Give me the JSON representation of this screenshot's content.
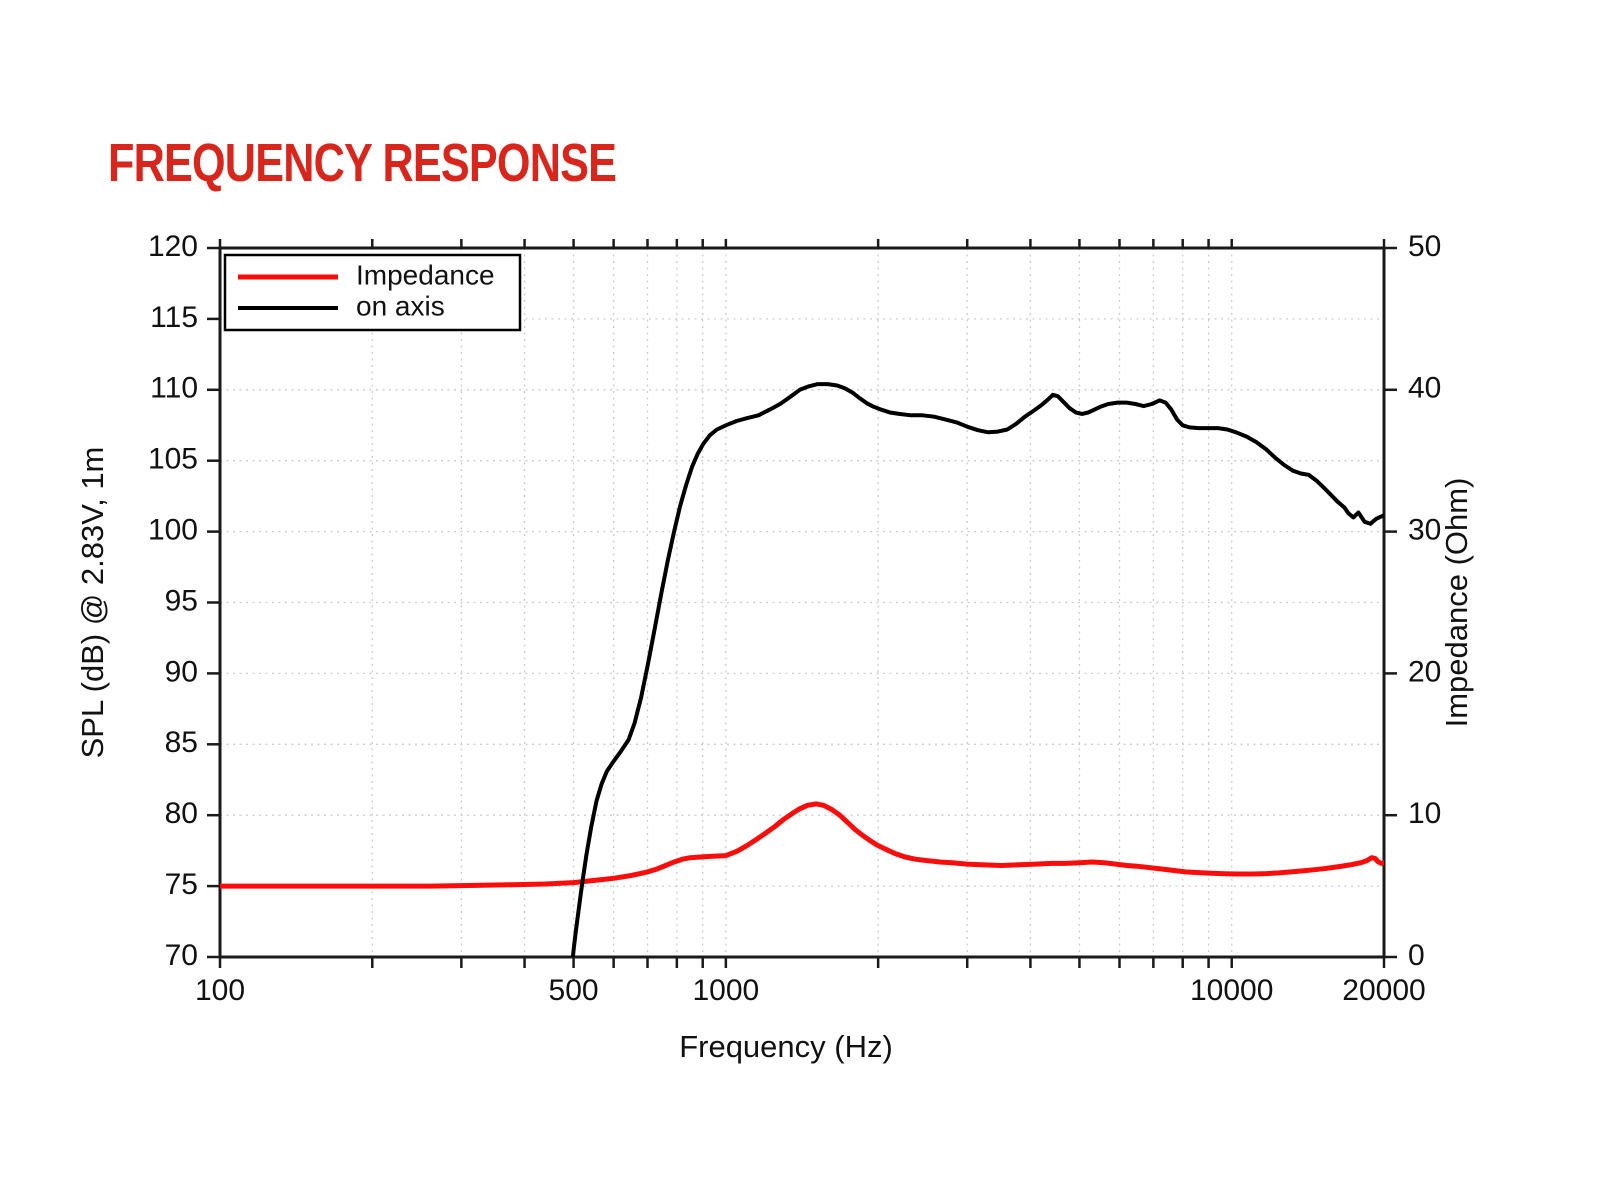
{
  "title": {
    "text": "FREQUENCY RESPONSE",
    "color": "#d9261c"
  },
  "chart_data": {
    "type": "line",
    "title": "FREQUENCY RESPONSE",
    "x_axis": {
      "label": "Frequency (Hz)",
      "scale": "log",
      "range": [
        100,
        20000
      ],
      "labeled_ticks": [
        100,
        500,
        1000,
        10000,
        20000
      ],
      "minor_ticks": [
        100,
        200,
        300,
        400,
        500,
        600,
        700,
        800,
        900,
        1000,
        2000,
        3000,
        4000,
        5000,
        6000,
        7000,
        8000,
        9000,
        10000,
        20000
      ]
    },
    "y_left_axis": {
      "label": "SPL (dB) @ 2.83V, 1m",
      "range": [
        70,
        120
      ],
      "ticks": [
        70,
        75,
        80,
        85,
        90,
        95,
        100,
        105,
        110,
        115,
        120
      ]
    },
    "y_right_axis": {
      "label": "Impedance (Ohm)",
      "range": [
        0,
        50
      ],
      "ticks": [
        0,
        10,
        20,
        30,
        40,
        50
      ]
    },
    "grid": {
      "visible": true,
      "line_style": "dashed",
      "color": "#cccccc"
    },
    "frame_color": "#1a1a1a",
    "legend": {
      "position": "top-left",
      "entries": [
        {
          "label": "Impedance",
          "series": "impedance",
          "color": "#f90d0b"
        },
        {
          "label": "on axis",
          "series": "on_axis",
          "color": "#000000"
        }
      ]
    },
    "series": [
      {
        "id": "impedance",
        "name": "Impedance",
        "axis": "right",
        "unit": "Ohm",
        "color": "#f90d0b",
        "stroke_width": 5,
        "points": [
          [
            100,
            5.0
          ],
          [
            150,
            5.0
          ],
          [
            200,
            5.0
          ],
          [
            260,
            5.0
          ],
          [
            320,
            5.05
          ],
          [
            380,
            5.1
          ],
          [
            440,
            5.15
          ],
          [
            500,
            5.25
          ],
          [
            550,
            5.4
          ],
          [
            600,
            5.55
          ],
          [
            650,
            5.75
          ],
          [
            700,
            6.0
          ],
          [
            730,
            6.2
          ],
          [
            760,
            6.45
          ],
          [
            790,
            6.7
          ],
          [
            820,
            6.9
          ],
          [
            850,
            7.0
          ],
          [
            890,
            7.05
          ],
          [
            940,
            7.1
          ],
          [
            1000,
            7.15
          ],
          [
            1050,
            7.45
          ],
          [
            1100,
            7.85
          ],
          [
            1150,
            8.3
          ],
          [
            1200,
            8.75
          ],
          [
            1250,
            9.2
          ],
          [
            1300,
            9.7
          ],
          [
            1350,
            10.1
          ],
          [
            1400,
            10.45
          ],
          [
            1450,
            10.7
          ],
          [
            1510,
            10.8
          ],
          [
            1560,
            10.7
          ],
          [
            1620,
            10.4
          ],
          [
            1680,
            10.0
          ],
          [
            1740,
            9.5
          ],
          [
            1800,
            9.0
          ],
          [
            1860,
            8.6
          ],
          [
            1920,
            8.25
          ],
          [
            1990,
            7.9
          ],
          [
            2070,
            7.6
          ],
          [
            2160,
            7.3
          ],
          [
            2260,
            7.05
          ],
          [
            2370,
            6.9
          ],
          [
            2500,
            6.8
          ],
          [
            2650,
            6.7
          ],
          [
            2800,
            6.65
          ],
          [
            3000,
            6.55
          ],
          [
            3200,
            6.5
          ],
          [
            3500,
            6.45
          ],
          [
            3800,
            6.5
          ],
          [
            4100,
            6.55
          ],
          [
            4400,
            6.6
          ],
          [
            4700,
            6.6
          ],
          [
            5000,
            6.65
          ],
          [
            5300,
            6.7
          ],
          [
            5600,
            6.65
          ],
          [
            5900,
            6.55
          ],
          [
            6200,
            6.45
          ],
          [
            6500,
            6.4
          ],
          [
            6900,
            6.3
          ],
          [
            7300,
            6.2
          ],
          [
            7700,
            6.1
          ],
          [
            8100,
            6.0
          ],
          [
            8600,
            5.95
          ],
          [
            9100,
            5.9
          ],
          [
            9700,
            5.87
          ],
          [
            10300,
            5.85
          ],
          [
            11000,
            5.85
          ],
          [
            11700,
            5.88
          ],
          [
            12400,
            5.93
          ],
          [
            13100,
            6.0
          ],
          [
            13800,
            6.07
          ],
          [
            14500,
            6.15
          ],
          [
            15200,
            6.23
          ],
          [
            15900,
            6.32
          ],
          [
            16600,
            6.42
          ],
          [
            17300,
            6.52
          ],
          [
            18000,
            6.65
          ],
          [
            18500,
            6.8
          ],
          [
            18900,
            7.0
          ],
          [
            19200,
            6.95
          ],
          [
            19500,
            6.7
          ],
          [
            19800,
            6.6
          ],
          [
            20000,
            6.65
          ]
        ]
      },
      {
        "id": "on_axis",
        "name": "on axis",
        "axis": "left",
        "unit": "dB",
        "color": "#000000",
        "stroke_width": 4,
        "points": [
          [
            495,
            69.0
          ],
          [
            500,
            70.5
          ],
          [
            505,
            71.8
          ],
          [
            512,
            73.4
          ],
          [
            520,
            75.2
          ],
          [
            530,
            77.2
          ],
          [
            542,
            79.2
          ],
          [
            555,
            81.0
          ],
          [
            568,
            82.2
          ],
          [
            582,
            83.1
          ],
          [
            600,
            83.8
          ],
          [
            620,
            84.5
          ],
          [
            642,
            85.3
          ],
          [
            660,
            86.5
          ],
          [
            680,
            88.3
          ],
          [
            700,
            90.5
          ],
          [
            722,
            93.0
          ],
          [
            745,
            95.6
          ],
          [
            768,
            98.0
          ],
          [
            790,
            100.0
          ],
          [
            812,
            101.8
          ],
          [
            835,
            103.3
          ],
          [
            858,
            104.6
          ],
          [
            880,
            105.5
          ],
          [
            903,
            106.2
          ],
          [
            930,
            106.8
          ],
          [
            960,
            107.2
          ],
          [
            1000,
            107.5
          ],
          [
            1050,
            107.8
          ],
          [
            1100,
            108.0
          ],
          [
            1160,
            108.2
          ],
          [
            1220,
            108.6
          ],
          [
            1280,
            109.0
          ],
          [
            1340,
            109.5
          ],
          [
            1400,
            110.0
          ],
          [
            1460,
            110.25
          ],
          [
            1520,
            110.4
          ],
          [
            1590,
            110.4
          ],
          [
            1660,
            110.3
          ],
          [
            1720,
            110.1
          ],
          [
            1780,
            109.8
          ],
          [
            1840,
            109.4
          ],
          [
            1900,
            109.05
          ],
          [
            1960,
            108.8
          ],
          [
            2030,
            108.6
          ],
          [
            2110,
            108.4
          ],
          [
            2200,
            108.3
          ],
          [
            2320,
            108.2
          ],
          [
            2450,
            108.2
          ],
          [
            2580,
            108.1
          ],
          [
            2720,
            107.9
          ],
          [
            2860,
            107.7
          ],
          [
            3000,
            107.4
          ],
          [
            3150,
            107.15
          ],
          [
            3300,
            107.0
          ],
          [
            3450,
            107.05
          ],
          [
            3600,
            107.2
          ],
          [
            3750,
            107.6
          ],
          [
            3900,
            108.1
          ],
          [
            4050,
            108.5
          ],
          [
            4200,
            108.9
          ],
          [
            4330,
            109.3
          ],
          [
            4430,
            109.65
          ],
          [
            4530,
            109.55
          ],
          [
            4650,
            109.15
          ],
          [
            4780,
            108.7
          ],
          [
            4920,
            108.4
          ],
          [
            5060,
            108.3
          ],
          [
            5200,
            108.4
          ],
          [
            5350,
            108.6
          ],
          [
            5500,
            108.8
          ],
          [
            5700,
            109.0
          ],
          [
            5950,
            109.1
          ],
          [
            6200,
            109.1
          ],
          [
            6450,
            109.0
          ],
          [
            6700,
            108.85
          ],
          [
            6950,
            109.0
          ],
          [
            7200,
            109.25
          ],
          [
            7400,
            109.1
          ],
          [
            7600,
            108.6
          ],
          [
            7800,
            107.9
          ],
          [
            8000,
            107.5
          ],
          [
            8250,
            107.35
          ],
          [
            8600,
            107.3
          ],
          [
            9000,
            107.3
          ],
          [
            9400,
            107.3
          ],
          [
            9800,
            107.2
          ],
          [
            10200,
            107.0
          ],
          [
            10700,
            106.7
          ],
          [
            11200,
            106.3
          ],
          [
            11700,
            105.8
          ],
          [
            12200,
            105.2
          ],
          [
            12700,
            104.7
          ],
          [
            13200,
            104.3
          ],
          [
            13700,
            104.1
          ],
          [
            14200,
            104.0
          ],
          [
            14700,
            103.6
          ],
          [
            15200,
            103.1
          ],
          [
            15700,
            102.6
          ],
          [
            16200,
            102.1
          ],
          [
            16700,
            101.7
          ],
          [
            17000,
            101.3
          ],
          [
            17400,
            101.0
          ],
          [
            17800,
            101.35
          ],
          [
            18300,
            100.7
          ],
          [
            18800,
            100.55
          ],
          [
            19300,
            100.9
          ],
          [
            19700,
            101.05
          ],
          [
            20000,
            101.15
          ]
        ]
      }
    ]
  }
}
